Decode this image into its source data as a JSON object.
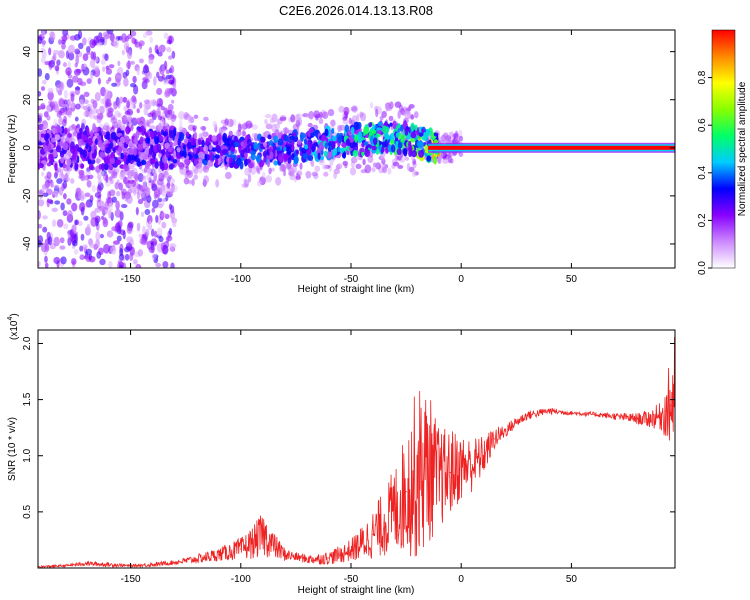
{
  "figure_title": "C2E6.2026.014.13.13.R08",
  "chart_data": [
    {
      "type": "heatmap",
      "xlabel": "Height of straight line (km)",
      "ylabel": "Frequency (Hz)",
      "xlim": [
        -192,
        97
      ],
      "ylim": [
        -50,
        49
      ],
      "xticks": [
        -150,
        -100,
        -50,
        0,
        50
      ],
      "yticks": [
        -40,
        -20,
        0,
        20,
        40
      ],
      "xtick_labels": [
        "-150",
        "-100",
        "-50",
        "0",
        "50"
      ],
      "ytick_labels": [
        "-40",
        "-20",
        "0",
        "20",
        "40"
      ],
      "colorbar": {
        "label": "Normalized spectral amplitude",
        "range": [
          0.0,
          1.0
        ],
        "ticks": [
          0.0,
          0.2,
          0.4,
          0.6,
          0.8
        ],
        "tick_labels": [
          "0.0",
          "0.2",
          "0.4",
          "0.6",
          "0.8"
        ],
        "colormap": [
          "#ffffff",
          "#cc88ff",
          "#8800ff",
          "#0000ff",
          "#00ccff",
          "#00ff66",
          "#88ff00",
          "#ffff00",
          "#ff8800",
          "#ff0000"
        ]
      },
      "ridge": {
        "description_points_x": [
          -192,
          -130,
          -100,
          -70,
          -50,
          -40,
          -25,
          -15,
          -10,
          0,
          10,
          50,
          97
        ],
        "center_freq_hz": [
          0,
          0,
          -2,
          1,
          3,
          4,
          4,
          1,
          0,
          0,
          0,
          0,
          0
        ],
        "peak_amplitude": [
          0.3,
          0.35,
          0.4,
          0.45,
          0.55,
          0.6,
          0.6,
          0.8,
          1.0,
          1.0,
          1.0,
          1.0,
          1.0
        ]
      }
    },
    {
      "type": "line",
      "xlabel": "Height of straight line (km)",
      "ylabel": "SNR (10 * v/v)",
      "scale_label": "(x10",
      "scale_exp": "4",
      "scale_close": ")",
      "color": "#ee2222",
      "xlim": [
        -192,
        97
      ],
      "ylim": [
        0,
        2.12
      ],
      "xticks": [
        -150,
        -100,
        -50,
        0,
        50
      ],
      "yticks": [
        0.5,
        1.0,
        1.5,
        2.0
      ],
      "xtick_labels": [
        "-150",
        "-100",
        "-50",
        "0",
        "50"
      ],
      "ytick_labels": [
        "0.5",
        "1.0",
        "1.5",
        "2.0"
      ],
      "x": [
        -192,
        -180,
        -170,
        -160,
        -150,
        -140,
        -130,
        -120,
        -110,
        -100,
        -95,
        -90,
        -85,
        -80,
        -75,
        -70,
        -65,
        -60,
        -55,
        -50,
        -45,
        -40,
        -35,
        -30,
        -25,
        -20,
        -15,
        -10,
        -5,
        0,
        5,
        10,
        15,
        20,
        25,
        30,
        40,
        50,
        60,
        70,
        80,
        85,
        90,
        93,
        95,
        97
      ],
      "y": [
        0.01,
        0.02,
        0.04,
        0.03,
        0.02,
        0.03,
        0.05,
        0.08,
        0.12,
        0.17,
        0.22,
        0.3,
        0.2,
        0.12,
        0.1,
        0.08,
        0.08,
        0.09,
        0.12,
        0.16,
        0.22,
        0.3,
        0.4,
        0.52,
        0.68,
        0.85,
        0.9,
        0.8,
        0.85,
        0.9,
        0.92,
        1.0,
        1.15,
        1.22,
        1.3,
        1.36,
        1.4,
        1.38,
        1.37,
        1.35,
        1.33,
        1.33,
        1.35,
        1.4,
        1.45,
        1.6
      ],
      "noise_band": [
        0.01,
        0.01,
        0.02,
        0.02,
        0.01,
        0.02,
        0.02,
        0.04,
        0.06,
        0.1,
        0.14,
        0.2,
        0.12,
        0.06,
        0.04,
        0.04,
        0.05,
        0.06,
        0.08,
        0.1,
        0.16,
        0.22,
        0.3,
        0.4,
        0.55,
        0.8,
        0.7,
        0.45,
        0.4,
        0.3,
        0.25,
        0.18,
        0.1,
        0.06,
        0.05,
        0.04,
        0.03,
        0.02,
        0.02,
        0.03,
        0.05,
        0.08,
        0.12,
        0.25,
        0.45,
        0.55
      ]
    }
  ]
}
